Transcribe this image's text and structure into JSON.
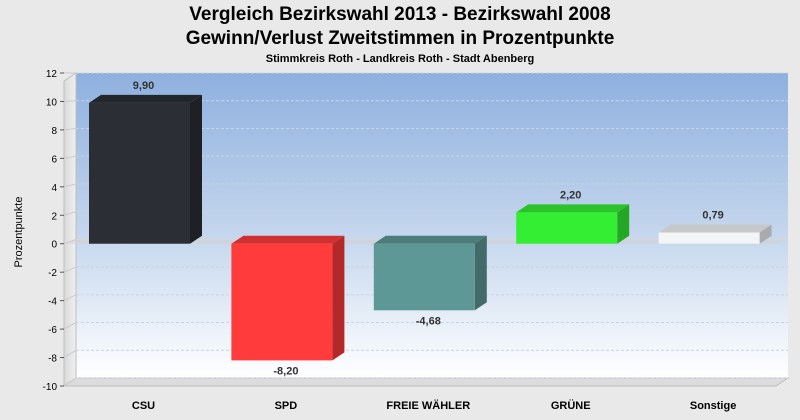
{
  "header": {
    "title": "Vergleich Bezirkswahl 2013 - Bezirkswahl 2008",
    "subtitle": "Gewinn/Verlust Zweitstimmen in Prozentpunkte",
    "caption": "Stimmkreis Roth - Landkreis Roth - Stadt Abenberg"
  },
  "chart_data": {
    "type": "bar",
    "title": "Vergleich Bezirkswahl 2013 - Bezirkswahl 2008",
    "ylabel": "Prozentpunkte",
    "categories": [
      "CSU",
      "SPD",
      "FREIE WÄHLER",
      "GRÜNE",
      "Sonstige"
    ],
    "values": [
      9.9,
      -8.2,
      -4.68,
      2.2,
      0.79
    ],
    "value_labels": [
      "9,90",
      "-8,20",
      "-4,68",
      "2,20",
      "0,79"
    ],
    "colors": [
      "#2b2e35",
      "#ff3b3b",
      "#5e9896",
      "#33ee33",
      "#f3f4f6"
    ],
    "ylim": [
      -10,
      12
    ],
    "yticks": [
      12,
      10,
      8,
      6,
      4,
      2,
      0,
      -2,
      -4,
      -6,
      -8,
      -10
    ],
    "grid": true,
    "legend": "none"
  }
}
